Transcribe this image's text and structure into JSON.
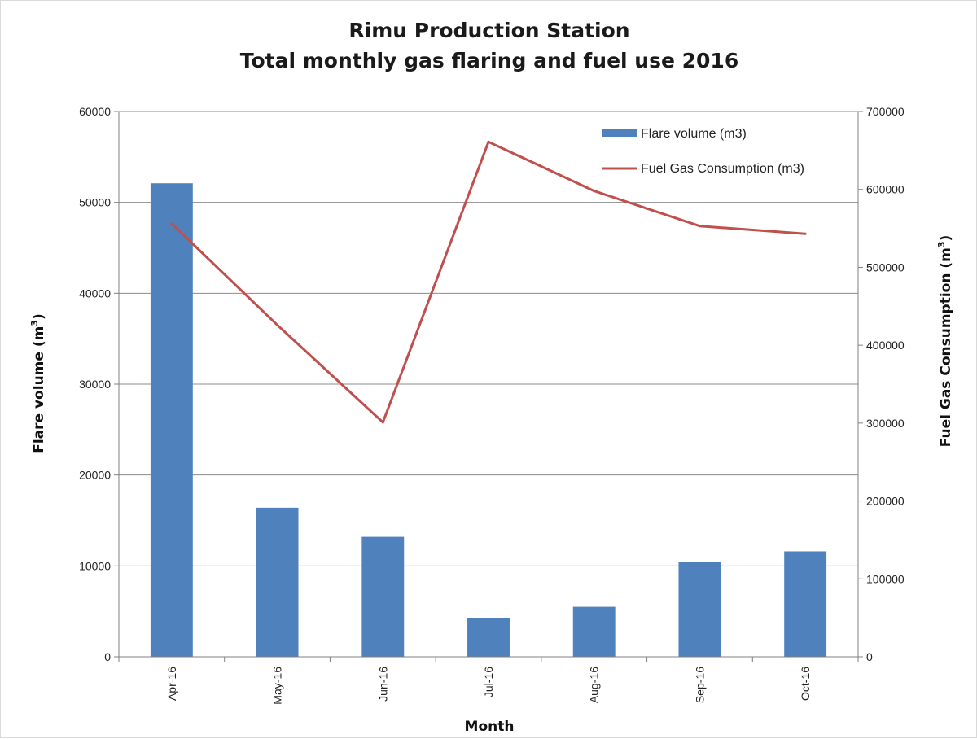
{
  "chart_data": {
    "type": "bar",
    "title_line1": "Rimu Production Station",
    "title_line2": "Total monthly gas flaring and fuel use 2016",
    "xlabel": "Month",
    "ylabel_left": "Flare volume (m",
    "ylabel_right": "Fuel Gas Consumption (m",
    "unit_sup": "3",
    "unit_close": ")",
    "categories": [
      "Apr-16",
      "May-16",
      "Jun-16",
      "Jul-16",
      "Aug-16",
      "Sep-16",
      "Oct-16"
    ],
    "series": [
      {
        "name": "Flare volume (m3)",
        "type": "bar",
        "axis": "left",
        "color": "#4f81bd",
        "values": [
          52100,
          16400,
          13200,
          4300,
          5500,
          10400,
          11600
        ]
      },
      {
        "name": "Fuel Gas Consumption (m3)",
        "type": "line",
        "axis": "right",
        "color": "#c0504d",
        "values": [
          556000,
          426000,
          301000,
          661000,
          598000,
          553000,
          543000
        ]
      }
    ],
    "ylim_left": [
      0,
      60000
    ],
    "yticks_left": [
      "0",
      "10000",
      "20000",
      "30000",
      "40000",
      "50000",
      "60000"
    ],
    "ylim_right": [
      0,
      700000
    ],
    "yticks_right": [
      "0",
      "100000",
      "200000",
      "300000",
      "400000",
      "500000",
      "600000",
      "700000"
    ],
    "grid": true,
    "legend_position": "top-right"
  }
}
